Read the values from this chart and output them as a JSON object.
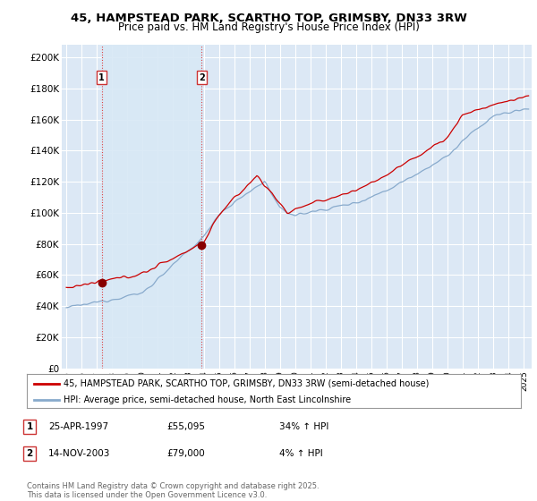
{
  "title": "45, HAMPSTEAD PARK, SCARTHO TOP, GRIMSBY, DN33 3RW",
  "subtitle": "Price paid vs. HM Land Registry's House Price Index (HPI)",
  "ylabel_ticks": [
    "£0",
    "£20K",
    "£40K",
    "£60K",
    "£80K",
    "£100K",
    "£120K",
    "£140K",
    "£160K",
    "£180K",
    "£200K"
  ],
  "ytick_values": [
    0,
    20000,
    40000,
    60000,
    80000,
    100000,
    120000,
    140000,
    160000,
    180000,
    200000
  ],
  "ylim": [
    0,
    208000
  ],
  "xlim_start": 1994.7,
  "xlim_end": 2025.5,
  "purchase1": {
    "year": 1997.32,
    "price": 55095,
    "label": "1"
  },
  "purchase2": {
    "year": 2003.88,
    "price": 79000,
    "label": "2"
  },
  "red_line_color": "#cc0000",
  "blue_line_color": "#88aacc",
  "dashed_line_color": "#dd4444",
  "shading_color": "#d8e8f5",
  "plot_bg_color": "#dce8f5",
  "grid_color": "#ffffff",
  "legend_label_red": "45, HAMPSTEAD PARK, SCARTHO TOP, GRIMSBY, DN33 3RW (semi-detached house)",
  "legend_label_blue": "HPI: Average price, semi-detached house, North East Lincolnshire",
  "table_row1": [
    "1",
    "25-APR-1997",
    "£55,095",
    "34% ↑ HPI"
  ],
  "table_row2": [
    "2",
    "14-NOV-2003",
    "£79,000",
    "4% ↑ HPI"
  ],
  "footer": "Contains HM Land Registry data © Crown copyright and database right 2025.\nThis data is licensed under the Open Government Licence v3.0."
}
